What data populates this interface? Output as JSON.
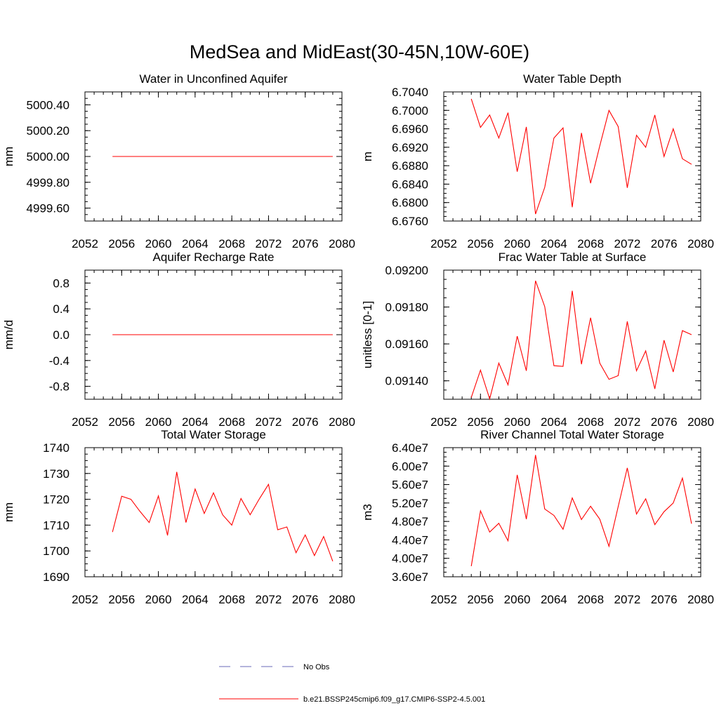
{
  "title": "MedSea and MidEast(30-45N,10W-60E)",
  "series_color": "#ff0000",
  "legend": {
    "obs_label": "No Obs",
    "obs_color": "#6a6ab8",
    "model_label": "b.e21.BSSP245cmip6.f09_g17.CMIP6-SSP2-4.5.001",
    "model_color": "#ff0000"
  },
  "chart_data": [
    {
      "type": "line",
      "title": "Water in Unconfined Aquifer",
      "ylabel": "mm",
      "xlabel": "",
      "xlim": [
        2052,
        2080
      ],
      "xticks": [
        2052,
        2056,
        2060,
        2064,
        2068,
        2072,
        2076,
        2080
      ],
      "xtick_labels": [
        "2052",
        "2056",
        "2060",
        "2064",
        "2068",
        "2072",
        "2076",
        "2080"
      ],
      "ylim": [
        4999.5,
        5000.5
      ],
      "yticks": [
        4999.6,
        4999.8,
        5000.0,
        5000.2,
        5000.4
      ],
      "ytick_labels": [
        "4999.60",
        "4999.80",
        "5000.00",
        "5000.20",
        "5000.40"
      ],
      "series": [
        {
          "x": [
            2055,
            2056,
            2057,
            2058,
            2059,
            2060,
            2061,
            2062,
            2063,
            2064,
            2065,
            2066,
            2067,
            2068,
            2069,
            2070,
            2071,
            2072,
            2073,
            2074,
            2075,
            2076,
            2077,
            2078,
            2079
          ],
          "values": [
            5000,
            5000,
            5000,
            5000,
            5000,
            5000,
            5000,
            5000,
            5000,
            5000,
            5000,
            5000,
            5000,
            5000,
            5000,
            5000,
            5000,
            5000,
            5000,
            5000,
            5000,
            5000,
            5000,
            5000,
            5000
          ]
        }
      ]
    },
    {
      "type": "line",
      "title": "Water Table Depth",
      "ylabel": "m",
      "xlabel": "",
      "xlim": [
        2052,
        2080
      ],
      "xticks": [
        2052,
        2056,
        2060,
        2064,
        2068,
        2072,
        2076,
        2080
      ],
      "xtick_labels": [
        "2052",
        "2056",
        "2060",
        "2064",
        "2068",
        "2072",
        "2076",
        "2080"
      ],
      "ylim": [
        6.676,
        6.704
      ],
      "yticks": [
        6.676,
        6.68,
        6.684,
        6.688,
        6.692,
        6.696,
        6.7,
        6.704
      ],
      "ytick_labels": [
        "6.6760",
        "6.6800",
        "6.6840",
        "6.6880",
        "6.6920",
        "6.6960",
        "6.7000",
        "6.7040"
      ],
      "series": [
        {
          "x": [
            2055,
            2056,
            2057,
            2058,
            2059,
            2060,
            2061,
            2062,
            2063,
            2064,
            2065,
            2066,
            2067,
            2068,
            2069,
            2070,
            2071,
            2072,
            2073,
            2074,
            2075,
            2076,
            2077,
            2078,
            2079
          ],
          "values": [
            6.7025,
            6.6963,
            6.699,
            6.694,
            6.6995,
            6.6867,
            6.6964,
            6.6775,
            6.6833,
            6.694,
            6.6962,
            6.679,
            6.6951,
            6.6842,
            6.6923,
            6.7,
            6.6965,
            6.6832,
            6.6946,
            6.692,
            6.699,
            6.69,
            6.696,
            6.6895,
            6.6883
          ]
        }
      ]
    },
    {
      "type": "line",
      "title": "Aquifer Recharge Rate",
      "ylabel": "mm/d",
      "xlabel": "",
      "xlim": [
        2052,
        2080
      ],
      "xticks": [
        2052,
        2056,
        2060,
        2064,
        2068,
        2072,
        2076,
        2080
      ],
      "xtick_labels": [
        "2052",
        "2056",
        "2060",
        "2064",
        "2068",
        "2072",
        "2076",
        "2080"
      ],
      "ylim": [
        -1.0,
        1.0
      ],
      "yticks": [
        -0.8,
        -0.4,
        0.0,
        0.4,
        0.8
      ],
      "ytick_labels": [
        "-0.8",
        "-0.4",
        "0.0",
        "0.4",
        "0.8"
      ],
      "series": [
        {
          "x": [
            2055,
            2056,
            2057,
            2058,
            2059,
            2060,
            2061,
            2062,
            2063,
            2064,
            2065,
            2066,
            2067,
            2068,
            2069,
            2070,
            2071,
            2072,
            2073,
            2074,
            2075,
            2076,
            2077,
            2078,
            2079
          ],
          "values": [
            0,
            0,
            0,
            0,
            0,
            0,
            0,
            0,
            0,
            0,
            0,
            0,
            0,
            0,
            0,
            0,
            0,
            0,
            0,
            0,
            0,
            0,
            0,
            0,
            0
          ]
        }
      ]
    },
    {
      "type": "line",
      "title": "Frac Water Table at Surface",
      "ylabel": "unitless [0-1]",
      "xlabel": "",
      "xlim": [
        2052,
        2080
      ],
      "xticks": [
        2052,
        2056,
        2060,
        2064,
        2068,
        2072,
        2076,
        2080
      ],
      "xtick_labels": [
        "2052",
        "2056",
        "2060",
        "2064",
        "2068",
        "2072",
        "2076",
        "2080"
      ],
      "ylim": [
        0.0913,
        0.092
      ],
      "yticks": [
        0.0914,
        0.0916,
        0.0918,
        0.092
      ],
      "ytick_labels": [
        "0.09140",
        "0.09160",
        "0.09180",
        "0.09200"
      ],
      "series": [
        {
          "x": [
            2055,
            2056,
            2057,
            2058,
            2059,
            2060,
            2061,
            2062,
            2063,
            2064,
            2065,
            2066,
            2067,
            2068,
            2069,
            2070,
            2071,
            2072,
            2073,
            2074,
            2075,
            2076,
            2077,
            2078,
            2079
          ],
          "values": [
            0.09131,
            0.091458,
            0.091302,
            0.091496,
            0.091378,
            0.091642,
            0.091454,
            0.091942,
            0.091802,
            0.091482,
            0.091478,
            0.091888,
            0.09149,
            0.091742,
            0.091496,
            0.091408,
            0.091428,
            0.091722,
            0.091454,
            0.091562,
            0.091356,
            0.09162,
            0.091448,
            0.091672,
            0.09165
          ]
        }
      ]
    },
    {
      "type": "line",
      "title": "Total Water Storage",
      "ylabel": "mm",
      "xlabel": "",
      "xlim": [
        2052,
        2080
      ],
      "xticks": [
        2052,
        2056,
        2060,
        2064,
        2068,
        2072,
        2076,
        2080
      ],
      "xtick_labels": [
        "2052",
        "2056",
        "2060",
        "2064",
        "2068",
        "2072",
        "2076",
        "2080"
      ],
      "ylim": [
        1690,
        1740
      ],
      "yticks": [
        1690,
        1700,
        1710,
        1720,
        1730,
        1740
      ],
      "ytick_labels": [
        "1690",
        "1700",
        "1710",
        "1720",
        "1730",
        "1740"
      ],
      "series": [
        {
          "x": [
            2055,
            2056,
            2057,
            2058,
            2059,
            2060,
            2061,
            2062,
            2063,
            2064,
            2065,
            2066,
            2067,
            2068,
            2069,
            2070,
            2071,
            2072,
            2073,
            2074,
            2075,
            2076,
            2077,
            2078,
            2079
          ],
          "values": [
            1707.3,
            1721.2,
            1720.0,
            1715.3,
            1711.0,
            1721.3,
            1706.0,
            1730.6,
            1711.0,
            1724.0,
            1714.5,
            1722.5,
            1714.0,
            1710.0,
            1720.3,
            1714.0,
            1720.2,
            1725.8,
            1708.2,
            1709.3,
            1699.3,
            1706.2,
            1698.2,
            1705.6,
            1696.0
          ]
        }
      ]
    },
    {
      "type": "line",
      "title": "River Channel Total Water Storage",
      "ylabel": "m3",
      "xlabel": "",
      "xlim": [
        2052,
        2080
      ],
      "xticks": [
        2052,
        2056,
        2060,
        2064,
        2068,
        2072,
        2076,
        2080
      ],
      "xtick_labels": [
        "2052",
        "2056",
        "2060",
        "2064",
        "2068",
        "2072",
        "2076",
        "2080"
      ],
      "ylim": [
        36000000,
        64000000
      ],
      "yticks": [
        36000000,
        40000000,
        44000000,
        48000000,
        52000000,
        56000000,
        60000000,
        64000000
      ],
      "ytick_labels": [
        "3.60e7",
        "4.00e7",
        "4.40e7",
        "4.80e7",
        "5.20e7",
        "5.60e7",
        "6.00e7",
        "6.40e7"
      ],
      "series": [
        {
          "x": [
            2055,
            2056,
            2057,
            2058,
            2059,
            2060,
            2061,
            2062,
            2063,
            2064,
            2065,
            2066,
            2067,
            2068,
            2069,
            2070,
            2071,
            2072,
            2073,
            2074,
            2075,
            2076,
            2077,
            2078,
            2079
          ],
          "values": [
            38300000,
            50300000,
            45700000,
            47600000,
            43800000,
            58100000,
            48500000,
            62400000,
            50700000,
            49300000,
            46300000,
            53100000,
            48400000,
            51300000,
            48500000,
            42600000,
            51200000,
            59600000,
            49600000,
            52900000,
            47300000,
            50100000,
            52000000,
            57400000,
            47500000
          ]
        }
      ]
    }
  ]
}
